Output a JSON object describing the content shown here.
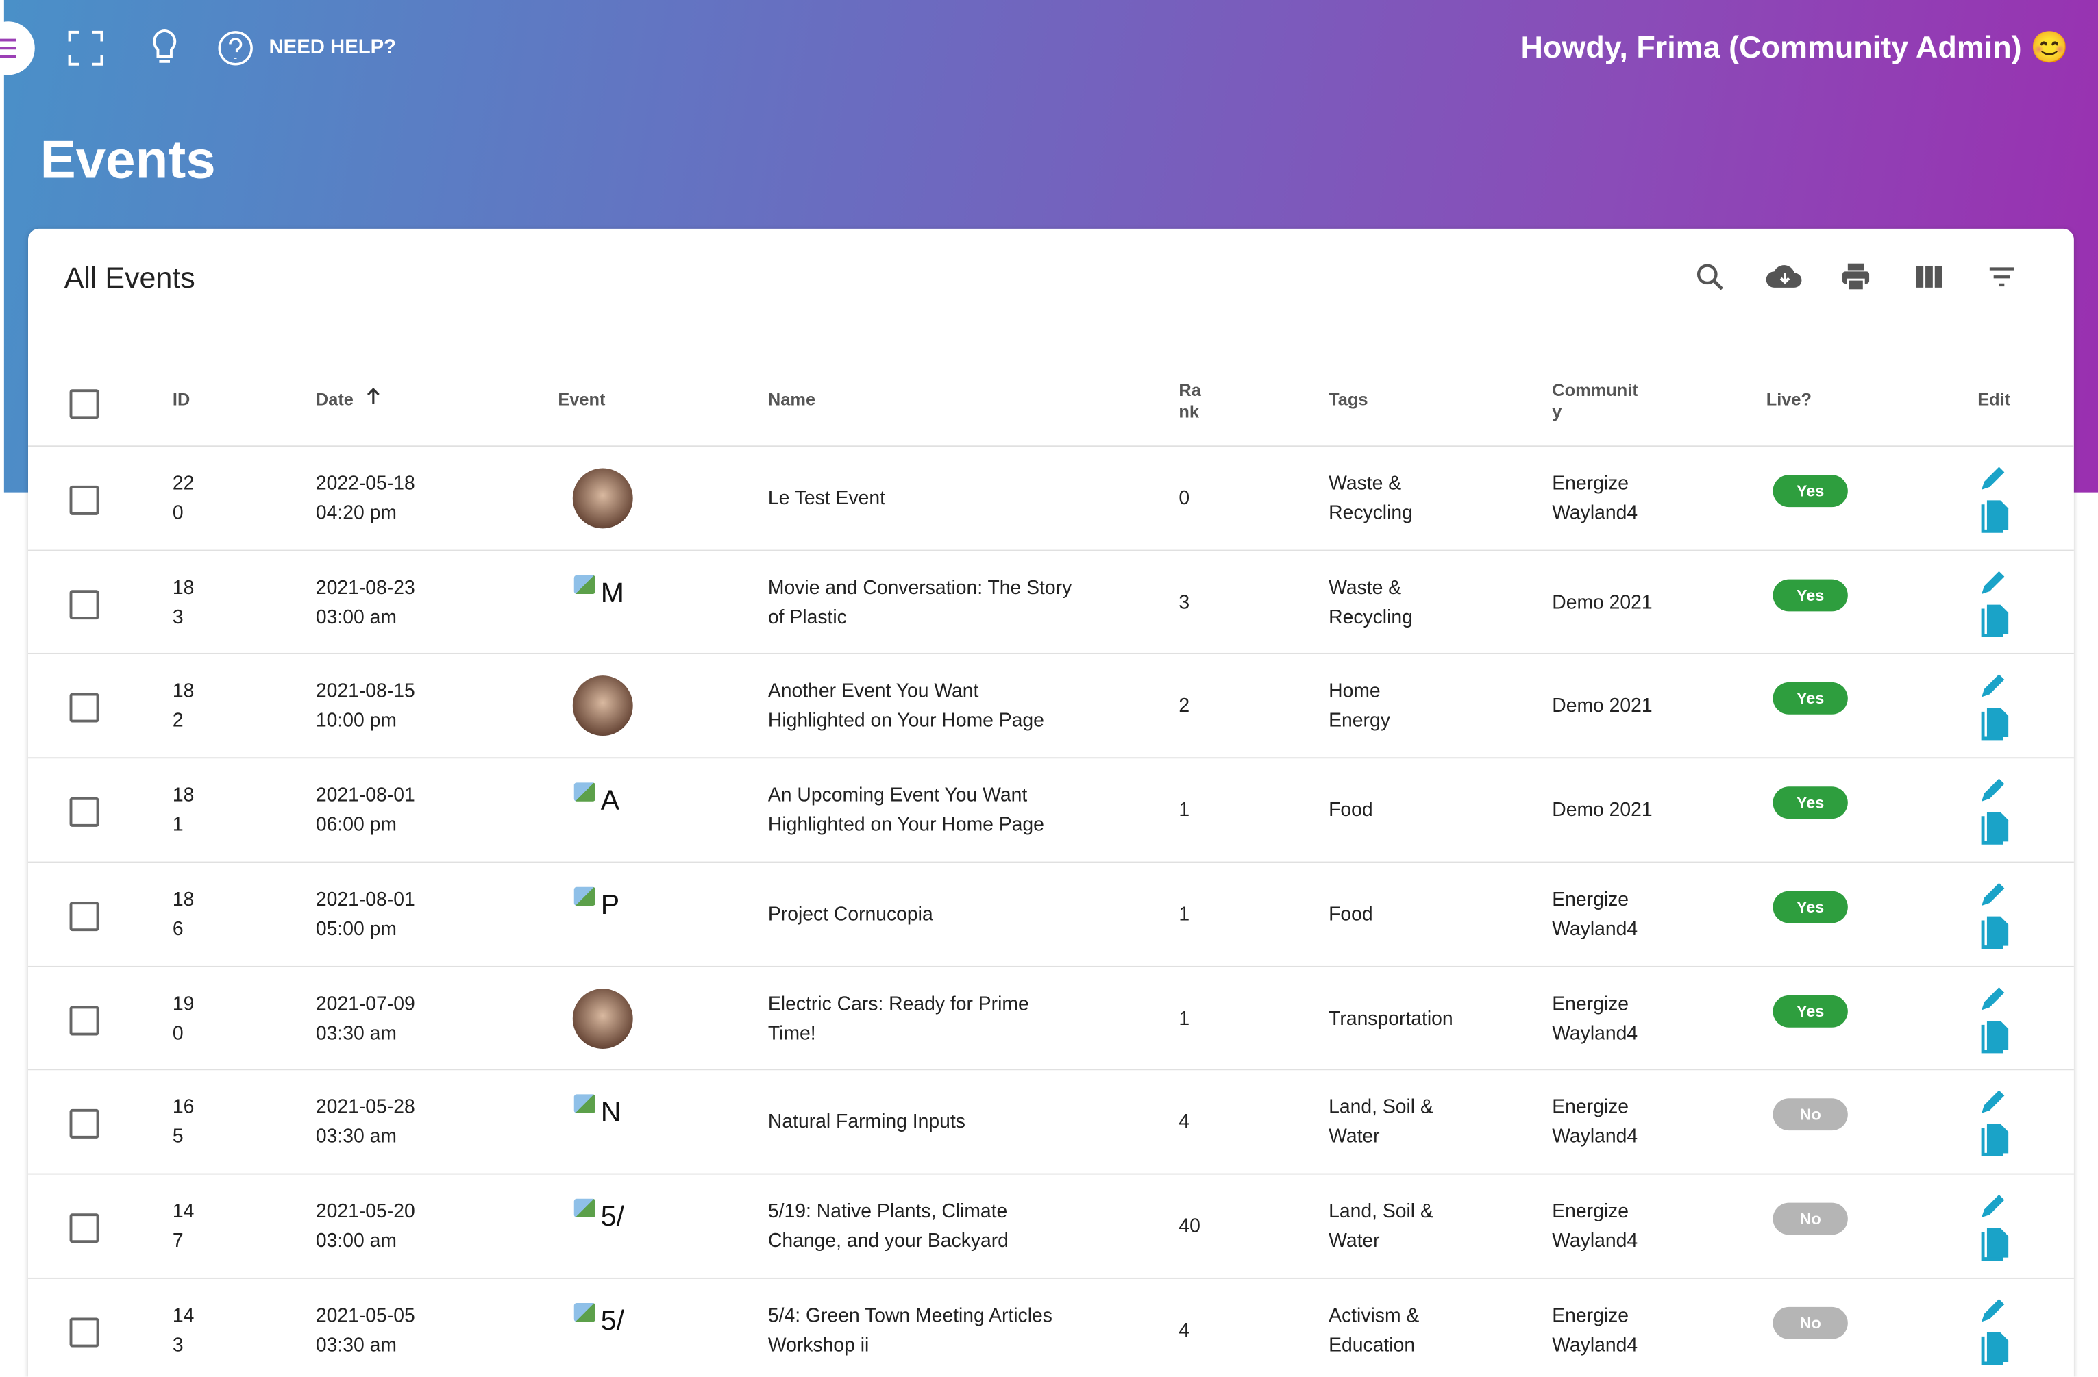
{
  "header": {
    "help": "NEED HELP?",
    "greeting": "Howdy, Frima (Community Admin) 😊",
    "page_title": "Events"
  },
  "table": {
    "title": "All Events",
    "columns": [
      "ID",
      "Date",
      "Event",
      "Name",
      "Rank",
      "Tags",
      "Community",
      "Live?",
      "Edit"
    ],
    "rows": [
      {
        "id": "220",
        "date": "2022-05-18",
        "time": "04:20 pm",
        "image_text": null,
        "name": "Le Test Event",
        "rank": "0",
        "tags": "Waste & Recycling",
        "community": "Energize Wayland4",
        "live": "Yes"
      },
      {
        "id": "183",
        "date": "2021-08-23",
        "time": "03:00 am",
        "image_text": "M",
        "name": "Movie and Conversation: The Story of Plastic",
        "rank": "3",
        "tags": "Waste & Recycling",
        "community": "Demo 2021",
        "live": "Yes"
      },
      {
        "id": "182",
        "date": "2021-08-15",
        "time": "10:00 pm",
        "image_text": null,
        "name": "Another Event You Want Highlighted on Your Home Page",
        "rank": "2",
        "tags": "Home Energy",
        "community": "Demo 2021",
        "live": "Yes"
      },
      {
        "id": "181",
        "date": "2021-08-01",
        "time": "06:00 pm",
        "image_text": "A",
        "name": "An Upcoming Event You Want Highlighted on Your Home Page",
        "rank": "1",
        "tags": "Food",
        "community": "Demo 2021",
        "live": "Yes"
      },
      {
        "id": "186",
        "date": "2021-08-01",
        "time": "05:00 pm",
        "image_text": "P",
        "name": "Project Cornucopia",
        "rank": "1",
        "tags": "Food",
        "community": "Energize Wayland4",
        "live": "Yes"
      },
      {
        "id": "190",
        "date": "2021-07-09",
        "time": "03:30 am",
        "image_text": null,
        "name": "Electric Cars: Ready for Prime Time!",
        "rank": "1",
        "tags": "Transportation",
        "community": "Energize Wayland4",
        "live": "Yes"
      },
      {
        "id": "165",
        "date": "2021-05-28",
        "time": "03:30 am",
        "image_text": "N",
        "name": "Natural Farming Inputs",
        "rank": "4",
        "tags": "Land, Soil & Water",
        "community": "Energize Wayland4",
        "live": "No"
      },
      {
        "id": "147",
        "date": "2021-05-20",
        "time": "03:00 am",
        "image_text": "5/",
        "name": "5/19: Native Plants, Climate Change, and your Backyard",
        "rank": "40",
        "tags": "Land, Soil & Water",
        "community": "Energize Wayland4",
        "live": "No"
      },
      {
        "id": "143",
        "date": "2021-05-05",
        "time": "03:30 am",
        "image_text": "5/",
        "name": "5/4: Green Town Meeting Articles Workshop ii",
        "rank": "4",
        "tags": "Activism & Education",
        "community": "Energize Wayland4",
        "live": "No"
      }
    ]
  }
}
